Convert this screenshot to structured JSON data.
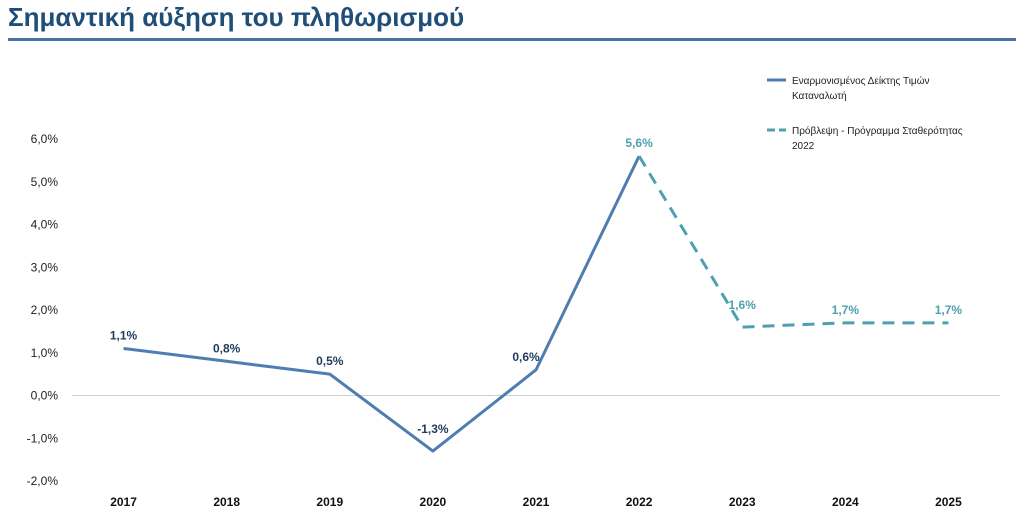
{
  "title": "Σημαντική αύξηση του πληθωρισμού",
  "chart_data": {
    "type": "line",
    "title": "Σημαντική αύξηση του πληθωρισμού",
    "categories": [
      "2017",
      "2018",
      "2019",
      "2020",
      "2021",
      "2022",
      "2023",
      "2024",
      "2025"
    ],
    "ylim": [
      -2.0,
      6.0
    ],
    "yticks": [
      6.0,
      5.0,
      4.0,
      3.0,
      2.0,
      1.0,
      0.0,
      -1.0,
      -2.0
    ],
    "ytick_labels": [
      "6,0%",
      "5,0%",
      "4,0%",
      "3,0%",
      "2,0%",
      "1,0%",
      "0,0%",
      "-1,0%",
      "-2,0%"
    ],
    "grid": false,
    "legend_position": "top-right",
    "colors": {
      "actual": "#4f7db1",
      "forecast": "#4da0b0",
      "label_actual": "#1f3b5c"
    },
    "series": [
      {
        "name": "Εναρμονισμένος Δείκτης Τιμών Καταναλωτή",
        "legend_lines": [
          "Εναρμονισμένος Δείκτης Τιμών",
          "Καταναλωτή"
        ],
        "style": "solid",
        "x": [
          "2017",
          "2018",
          "2019",
          "2020",
          "2021",
          "2022"
        ],
        "values": [
          1.1,
          0.8,
          0.5,
          -1.3,
          0.6,
          5.6
        ],
        "labels": [
          "1,1%",
          "0,8%",
          "0,5%",
          "-1,3%",
          "0,6%",
          ""
        ]
      },
      {
        "name": "Πρόβλεψη - Πρόγραμμα Σταθερότητας 2022",
        "legend_lines": [
          "Πρόβλεψη - Πρόγραμμα Σταθερότητας",
          "2022"
        ],
        "style": "dashed",
        "x": [
          "2022",
          "2023",
          "2024",
          "2025"
        ],
        "values": [
          5.6,
          1.6,
          1.7,
          1.7
        ],
        "labels": [
          "5,6%",
          "1,6%",
          "1,7%",
          "1,7%"
        ]
      }
    ]
  }
}
